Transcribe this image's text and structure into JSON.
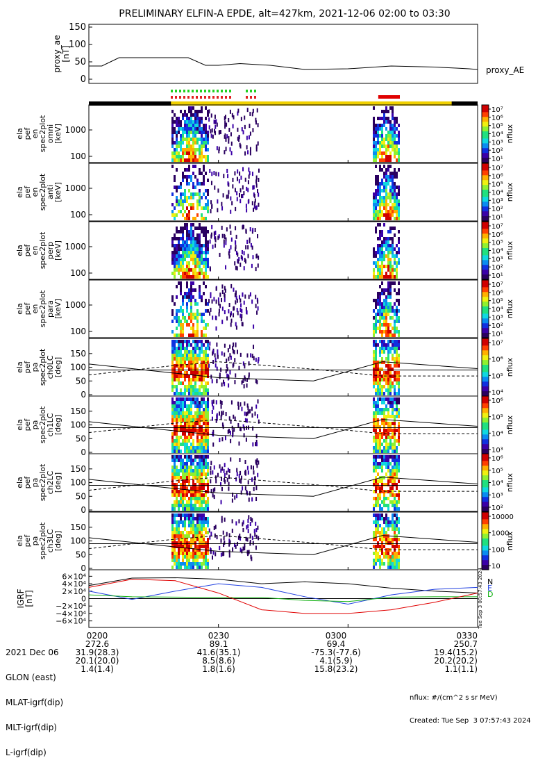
{
  "title": "PRELIMINARY ELFIN-A EPDE, alt=427km, 2021-12-06 02:00 to 03:30",
  "ae_panel": {
    "ylabel": [
      "proxy_ae",
      "[nT]"
    ],
    "yticks": [
      "150",
      "100",
      "50",
      "0"
    ],
    "legend": "proxy_AE"
  },
  "spectro_panels": [
    {
      "ylabel": [
        "ela",
        "pef",
        "en",
        "spec2plot",
        "omni",
        "[keV]"
      ],
      "yticks": [
        "1000",
        "100"
      ],
      "cbar_ticks": [
        "10⁷",
        "10⁶",
        "10⁵",
        "10⁴",
        "10³",
        "10²",
        "10¹"
      ],
      "cbar_label": "nflux"
    },
    {
      "ylabel": [
        "ela",
        "pef",
        "en",
        "spec2plot",
        "anti",
        "[keV]"
      ],
      "yticks": [
        "1000",
        "100"
      ],
      "cbar_ticks": [
        "10⁷",
        "10⁶",
        "10⁵",
        "10⁴",
        "10³",
        "10²",
        "10¹"
      ],
      "cbar_label": "nflux"
    },
    {
      "ylabel": [
        "ela",
        "pef",
        "en",
        "spec2plot",
        "perp",
        "[keV]"
      ],
      "yticks": [
        "1000",
        "100"
      ],
      "cbar_ticks": [
        "10⁷",
        "10⁶",
        "10⁵",
        "10⁴",
        "10³",
        "10²",
        "10¹"
      ],
      "cbar_label": "nflux"
    },
    {
      "ylabel": [
        "ela",
        "pef",
        "en",
        "spec2plot",
        "para",
        "[keV]"
      ],
      "yticks": [
        "1000",
        "100"
      ],
      "cbar_ticks": [
        "10⁷",
        "10⁶",
        "10⁵",
        "10⁴",
        "10³",
        "10²",
        "10¹"
      ],
      "cbar_label": "nflux"
    },
    {
      "ylabel": [
        "ela",
        "pef",
        "pa",
        "spec2plot",
        "ch0LC",
        "[deg]"
      ],
      "yticks": [
        "150",
        "100",
        "50",
        "0"
      ],
      "cbar_ticks": [
        "10⁷",
        "10⁶",
        "10⁵",
        "10⁴"
      ],
      "cbar_label": "nflux"
    },
    {
      "ylabel": [
        "ela",
        "pef",
        "pa",
        "spec2plot",
        "ch1LC",
        "[deg]"
      ],
      "yticks": [
        "150",
        "100",
        "50",
        "0"
      ],
      "cbar_ticks": [
        "10⁶",
        "10⁵",
        "10⁴",
        "10³"
      ],
      "cbar_label": "nflux"
    },
    {
      "ylabel": [
        "ela",
        "pef",
        "pa",
        "spec2plot",
        "ch2LC",
        "[deg]"
      ],
      "yticks": [
        "150",
        "100",
        "50",
        "0"
      ],
      "cbar_ticks": [
        "10⁶",
        "10⁵",
        "10⁴",
        "10³",
        "10²"
      ],
      "cbar_label": "nflux"
    },
    {
      "ylabel": [
        "ela",
        "pef",
        "pa",
        "spec2plot",
        "ch3LC",
        "[deg]"
      ],
      "yticks": [
        "150",
        "100",
        "50",
        "0"
      ],
      "cbar_ticks": [
        "10000",
        "1000",
        "100",
        "10"
      ],
      "cbar_label": "nflux"
    }
  ],
  "igrf_panel": {
    "ylabel": [
      "IGRF",
      "[nT]"
    ],
    "yticks": [
      "6×10⁴",
      "4×10⁴",
      "2×10⁴",
      "0",
      "−2×10⁴",
      "−4×10⁴",
      "−6×10⁴"
    ],
    "legend": [
      "N",
      "E",
      "D"
    ],
    "timestamp": "Tue Sep  3 00:57:43 2024"
  },
  "chart_data": {
    "type": "heatmap",
    "x_range": [
      "2021-12-06 02:00",
      "2021-12-06 03:30"
    ],
    "science_zones": [
      [
        "02:19",
        "03:24"
      ]
    ],
    "red_bar": [
      "03:07",
      "03:12"
    ],
    "proxy_ae": {
      "t": [
        "02:00",
        "02:03",
        "02:07",
        "02:12",
        "02:23",
        "02:27",
        "02:30",
        "02:35",
        "02:42",
        "02:50",
        "03:00",
        "03:10",
        "03:20",
        "03:25",
        "03:28",
        "03:30"
      ],
      "values": [
        38,
        38,
        62,
        62,
        62,
        40,
        40,
        45,
        40,
        28,
        30,
        38,
        35,
        32,
        30,
        28
      ],
      "ylim": [
        0,
        150
      ]
    },
    "pitch_angle_lines": {
      "t": [
        "02:00",
        "02:19",
        "02:30",
        "02:52",
        "03:08",
        "03:30"
      ],
      "solid": [
        112,
        80,
        62,
        50,
        120,
        95
      ],
      "dashed": [
        72,
        105,
        120,
        93,
        68,
        68
      ],
      "horizontal": [
        90
      ]
    },
    "igrf": {
      "t": [
        "02:00",
        "02:10",
        "02:20",
        "02:30",
        "02:40",
        "02:50",
        "03:00",
        "03:10",
        "03:20",
        "03:30"
      ],
      "N": [
        35000,
        55000,
        56000,
        52000,
        40000,
        45000,
        40000,
        28000,
        20000,
        15000
      ],
      "E": [
        20000,
        -2000,
        20000,
        40000,
        30000,
        5000,
        -15000,
        10000,
        25000,
        30000
      ],
      "D": [
        10000,
        5000,
        4000,
        3000,
        3000,
        -5000,
        -8000,
        4000,
        5000,
        5000
      ],
      "ylim": [
        -70000,
        70000
      ]
    }
  },
  "footer": {
    "rows": [
      {
        "label": "2021 Dec 06",
        "values": [
          "0200",
          "0230",
          "0300",
          "0330"
        ]
      },
      {
        "label": "GLON (east)",
        "values": [
          "272.6",
          "89.1",
          "69.4",
          "250.7"
        ]
      },
      {
        "label": "MLAT-igrf(dip)",
        "values": [
          "31.9(28.3)",
          "41.6(35.1)",
          "-75.3(-77.6)",
          "19.4(15.2)"
        ]
      },
      {
        "label": "MLT-igrf(dip)",
        "values": [
          "20.1(20.0)",
          "8.5(8.6)",
          "4.1(5.9)",
          "20.2(20.2)"
        ]
      },
      {
        "label": "L-igrf(dip)",
        "values": [
          "1.4(1.4)",
          "1.8(1.6)",
          "15.8(23.2)",
          "1.1(1.1)"
        ]
      }
    ],
    "units_note": "nflux: #/(cm^2 s sr MeV)",
    "created": "Created: Tue Sep  3 07:57:43 2024"
  }
}
